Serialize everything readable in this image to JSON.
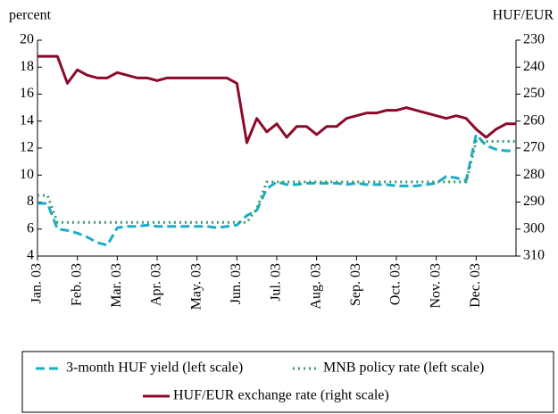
{
  "chart_data": {
    "type": "line",
    "ylabel": "percent",
    "y2label": "HUF/EUR",
    "xlim": [
      0,
      12
    ],
    "xticks": [
      {
        "value": 0,
        "label": "Jan. 03"
      },
      {
        "value": 1,
        "label": "Feb. 03"
      },
      {
        "value": 2,
        "label": "Mar. 03"
      },
      {
        "value": 3,
        "label": "Apr. 03"
      },
      {
        "value": 4,
        "label": "May. 03"
      },
      {
        "value": 5,
        "label": "Jun. 03"
      },
      {
        "value": 6,
        "label": "Jul. 03"
      },
      {
        "value": 7,
        "label": "Aug. 03"
      },
      {
        "value": 8,
        "label": "Sep. 03"
      },
      {
        "value": 9,
        "label": "Oct. 03"
      },
      {
        "value": 10,
        "label": "Nov. 03"
      },
      {
        "value": 11,
        "label": "Dec. 03"
      }
    ],
    "ylim": [
      4,
      20
    ],
    "yticks": [
      4,
      6,
      8,
      10,
      12,
      14,
      16,
      18,
      20
    ],
    "y2lim": [
      310,
      230
    ],
    "y2ticks": [
      230,
      240,
      250,
      260,
      270,
      280,
      290,
      300,
      310
    ],
    "x": [
      0,
      0.25,
      0.5,
      0.75,
      1,
      1.25,
      1.5,
      1.75,
      2,
      2.25,
      2.5,
      2.75,
      3,
      3.25,
      3.5,
      3.75,
      4,
      4.25,
      4.5,
      4.75,
      5,
      5.25,
      5.5,
      5.75,
      6,
      6.25,
      6.5,
      6.75,
      7,
      7.25,
      7.5,
      7.75,
      8,
      8.25,
      8.5,
      8.75,
      9,
      9.25,
      9.5,
      9.75,
      10,
      10.25,
      10.5,
      10.75,
      11,
      11.25,
      11.5,
      11.75,
      12
    ],
    "series": [
      {
        "name": "3-month HUF yield (left scale)",
        "color": "#1aaec8",
        "style": "dashed",
        "axis": "y",
        "values": [
          7.9,
          7.9,
          6.0,
          5.9,
          5.7,
          5.4,
          5.0,
          4.8,
          6.1,
          6.2,
          6.2,
          6.3,
          6.2,
          6.2,
          6.2,
          6.2,
          6.2,
          6.2,
          6.1,
          6.2,
          6.3,
          7.0,
          7.4,
          9.0,
          9.5,
          9.3,
          9.3,
          9.4,
          9.4,
          9.4,
          9.4,
          9.3,
          9.4,
          9.3,
          9.3,
          9.3,
          9.2,
          9.2,
          9.2,
          9.3,
          9.4,
          9.9,
          9.8,
          9.6,
          13.0,
          12.2,
          11.9,
          11.8,
          11.8
        ]
      },
      {
        "name": "MNB policy rate (left scale)",
        "color": "#3c9a6a",
        "style": "dotted",
        "axis": "y",
        "values": [
          8.5,
          8.5,
          6.5,
          6.5,
          6.5,
          6.5,
          6.5,
          6.5,
          6.5,
          6.5,
          6.5,
          6.5,
          6.5,
          6.5,
          6.5,
          6.5,
          6.5,
          6.5,
          6.5,
          6.5,
          6.5,
          6.5,
          7.5,
          9.5,
          9.5,
          9.5,
          9.5,
          9.5,
          9.5,
          9.5,
          9.5,
          9.5,
          9.5,
          9.5,
          9.5,
          9.5,
          9.5,
          9.5,
          9.5,
          9.5,
          9.5,
          9.5,
          9.5,
          9.5,
          12.5,
          12.5,
          12.5,
          12.5,
          12.5
        ]
      },
      {
        "name": "HUF/EUR exchange rate (right scale)",
        "color": "#8b0a2a",
        "style": "solid",
        "axis": "y2",
        "values": [
          236,
          236,
          236,
          246,
          241,
          243,
          244,
          244,
          242,
          243,
          244,
          244,
          245,
          244,
          244,
          244,
          244,
          244,
          244,
          244,
          246,
          268,
          259,
          264,
          261,
          266,
          262,
          262,
          265,
          262,
          262,
          259,
          258,
          257,
          257,
          256,
          256,
          255,
          256,
          257,
          258,
          259,
          258,
          259,
          263,
          266,
          263,
          261,
          261
        ]
      }
    ]
  }
}
